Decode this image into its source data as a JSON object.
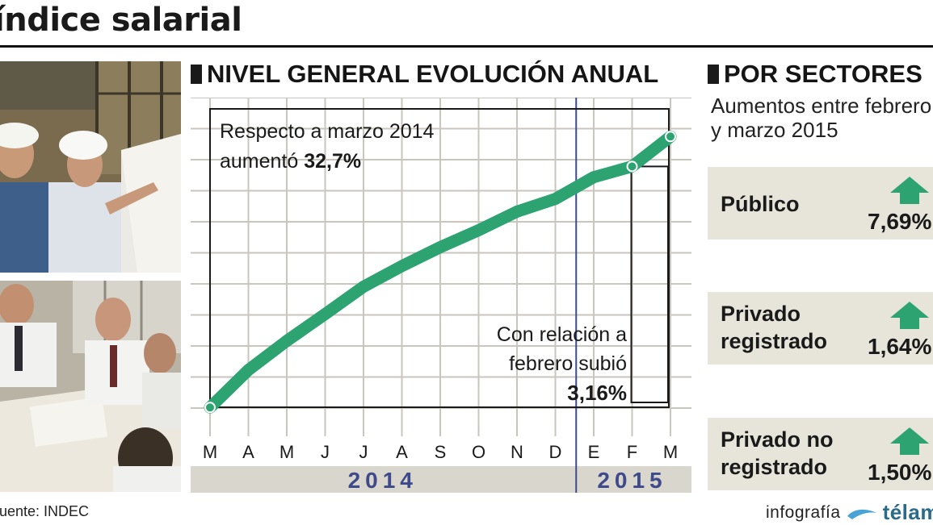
{
  "header": {
    "title": "índice salarial"
  },
  "line_section": {
    "title": "NIVEL GENERAL EVOLUCIÓN ANUAL"
  },
  "sectors_section": {
    "title": "POR SECTORES",
    "subtitle_line1": "Aumentos entre febrero",
    "subtitle_line2": "y marzo 2015"
  },
  "sectors": [
    {
      "name_line1": "Público",
      "name_line2": "",
      "value": "7,69%",
      "trend_icon": "up-arrow-icon"
    },
    {
      "name_line1": "Privado",
      "name_line2": "registrado",
      "value": "1,64%",
      "trend_icon": "up-arrow-icon"
    },
    {
      "name_line1": "Privado no",
      "name_line2": "registrado",
      "value": "1,50%",
      "trend_icon": "up-arrow-icon"
    }
  ],
  "footer": {
    "source": "Fuente: INDEC",
    "credit": "infografía",
    "brand": "télam"
  },
  "colors": {
    "line": "#2ea372",
    "arrow": "#2ea372",
    "grid": "#c9c6bd",
    "year_bar": "#d9d6cd",
    "year_text": "#3e4a8a",
    "divider": "#3e4a8a",
    "card": "#e7e4da"
  },
  "chart_data": {
    "type": "line",
    "title": "NIVEL GENERAL EVOLUCIÓN ANUAL",
    "categories": [
      "M",
      "A",
      "M",
      "J",
      "J",
      "A",
      "S",
      "O",
      "N",
      "D",
      "E",
      "F",
      "M"
    ],
    "years": [
      {
        "label": "2014",
        "span": [
          0,
          9
        ]
      },
      {
        "label": "2015",
        "span": [
          10,
          12
        ]
      }
    ],
    "series": [
      {
        "values": [
          10.2,
          23.5,
          33.8,
          43.3,
          53.0,
          60.3,
          67.0,
          73.0,
          79.6,
          84.1,
          91.8,
          95.6,
          106.2
        ]
      }
    ],
    "ylim": [
      0,
      120
    ],
    "grid": true,
    "annotations": [
      {
        "text_line1": "Respecto a marzo 2014",
        "text_prefix": "aumentó ",
        "value": "32,7%"
      },
      {
        "text_line1": "Con relación a",
        "text_line2": "febrero subió",
        "value": "3,16%"
      }
    ]
  }
}
